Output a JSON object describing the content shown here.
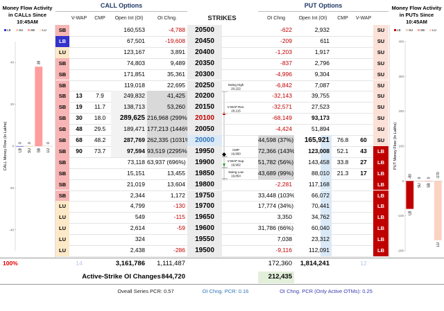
{
  "header": {
    "call_title": "CALL Options",
    "put_title": "PUT Options",
    "left_panel_title": "Money Flow Activity in CALLs Since 10:45AM",
    "right_panel_title": "Money Flow Activity in PUTs Since 10:45AM"
  },
  "columns": {
    "call": [
      "V-WAP",
      "CMP",
      "Open Int (OI)",
      "OI Chng."
    ],
    "strikes": "STRIKES",
    "put": [
      "OI Chng",
      "Open Int (OI)",
      "CMP",
      "V-WAP"
    ]
  },
  "rows": [
    [
      "SB",
      null,
      null,
      "160,553",
      "-4,788",
      "20500",
      "-622",
      "2,932",
      null,
      null,
      "SU"
    ],
    [
      "LB",
      null,
      null,
      "67,501",
      "-19,608",
      "20450",
      "-209",
      "611",
      null,
      null,
      "SU"
    ],
    [
      "LU",
      null,
      null,
      "123,167",
      "3,891",
      "20400",
      "-1,203",
      "1,917",
      null,
      null,
      "SU"
    ],
    [
      "SB",
      null,
      null,
      "74,803",
      "9,489",
      "20350",
      "-837",
      "2,796",
      null,
      null,
      "SU"
    ],
    [
      "SB",
      null,
      null,
      "171,851",
      "35,361",
      "20300",
      "-4,996",
      "9,304",
      null,
      null,
      "SU"
    ],
    [
      "SB",
      null,
      null,
      "119,018",
      "22,695",
      "20250",
      "-6,842",
      "7,087",
      null,
      null,
      "SU"
    ],
    [
      "SB",
      "13",
      "7.9",
      "249,832",
      "41,425",
      "20200",
      "-32,143",
      "39,755",
      null,
      null,
      "SU"
    ],
    [
      "SB",
      "19",
      "11.7",
      "138,713",
      "53,260",
      "20150",
      "-32,571",
      "27,523",
      null,
      null,
      "SU"
    ],
    [
      "SB",
      "30",
      "18.0",
      "289,625",
      "216,968 (299%)",
      "20100",
      "-68,149",
      "93,173",
      null,
      null,
      "SU"
    ],
    [
      "SB",
      "48",
      "29.5",
      "189,471",
      "177,213 (1446%)",
      "20050",
      "-4,424",
      "51,894",
      null,
      null,
      "SU"
    ],
    [
      "SB",
      "68",
      "48.2",
      "287,769",
      "262,335 (1031%)",
      "20000",
      "44,598 (37%)",
      "165,921",
      "76.8",
      "60",
      "SU"
    ],
    [
      "SB",
      "90",
      "73.7",
      "97,594",
      "93,519 (2295%)",
      "19950",
      "72,366 (143%)",
      "123,008",
      "52.1",
      "43",
      "LB"
    ],
    [
      "SB",
      null,
      null,
      "73,118",
      "63,937 (696%)",
      "19900",
      "51,782 (56%)",
      "143,458",
      "33.8",
      "27",
      "LB"
    ],
    [
      "SB",
      null,
      null,
      "15,151",
      "13,455",
      "19850",
      "43,689 (99%)",
      "88,010",
      "21.3",
      "17",
      "LB"
    ],
    [
      "SB",
      null,
      null,
      "21,019",
      "13,604",
      "19800",
      "-2,281",
      "117,168",
      null,
      null,
      "LB"
    ],
    [
      "SB",
      null,
      null,
      "2,344",
      "1,172",
      "19750",
      "33,448 (103%)",
      "66,072",
      null,
      null,
      "LB"
    ],
    [
      "LU",
      null,
      null,
      "4,799",
      "-130",
      "19700",
      "17,774 (34%)",
      "70,441",
      null,
      null,
      "LB"
    ],
    [
      "LU",
      null,
      null,
      "549",
      "-115",
      "19650",
      "3,350",
      "34,762",
      null,
      null,
      "LB"
    ],
    [
      "LU",
      null,
      null,
      "2,614",
      "-59",
      "19600",
      "31,786 (66%)",
      "60,040",
      null,
      null,
      "LB"
    ],
    [
      "LU",
      null,
      null,
      "324",
      null,
      "19550",
      "7,038",
      "23,312",
      null,
      null,
      "LB"
    ],
    [
      "LU",
      null,
      null,
      "2,438",
      "-286",
      "19500",
      "-9,116",
      "112,091",
      null,
      null,
      "LB"
    ]
  ],
  "totals": {
    "pct": "100%",
    "call_count": "14",
    "call_oi": "3,161,786",
    "call_oi_chng": "1,111,487",
    "put_oi_chng": "172,360",
    "put_oi": "1,814,241",
    "put_count": "12"
  },
  "active": {
    "label": "Active-Strike OI Changes",
    "call": "844,720",
    "put": "212,435"
  },
  "footer": [
    "Oveall Series PCR: 0.57",
    "OI Chng. PCR: 0.16",
    "OI Chng. PCR (Only Active OTMs): 0.25"
  ],
  "levels": [
    {
      "label": "Swing High",
      "value": "20,222"
    },
    {
      "label": "V-WAP Res.",
      "value": "20,115"
    },
    {
      "label": "CMP",
      "value": "19,950"
    },
    {
      "label": "V-WAP Sup.",
      "value": "19,902"
    },
    {
      "label": "Swing Low",
      "value": "19,854"
    }
  ],
  "chart_data": [
    {
      "type": "bar",
      "ylabel": "CALL Money Flow (In Lakhs)",
      "categories": [
        "LB",
        "SU",
        "SB",
        "LU"
      ],
      "values": [
        0,
        0,
        38,
        0
      ],
      "colors": [
        "#3333cc",
        "#f8c8b8",
        "#ff9c9c",
        "#fde6c4"
      ],
      "ylim": [
        -50,
        50
      ],
      "yticks": [
        -40,
        -20,
        0,
        20,
        40
      ]
    },
    {
      "type": "bar",
      "ylabel": "PUT Money Flow (In Lakhs)",
      "categories": [
        "LB",
        "SU",
        "SB",
        "LU"
      ],
      "values": [
        -80,
        0,
        0,
        -170
      ],
      "colors": [
        "#c00000",
        "#f8c8b8",
        "#ff9c9c",
        "#fbd3c3"
      ],
      "ylim": [
        -200,
        400
      ],
      "yticks": [
        -200,
        -100,
        0,
        100,
        200,
        300,
        400
      ]
    }
  ]
}
